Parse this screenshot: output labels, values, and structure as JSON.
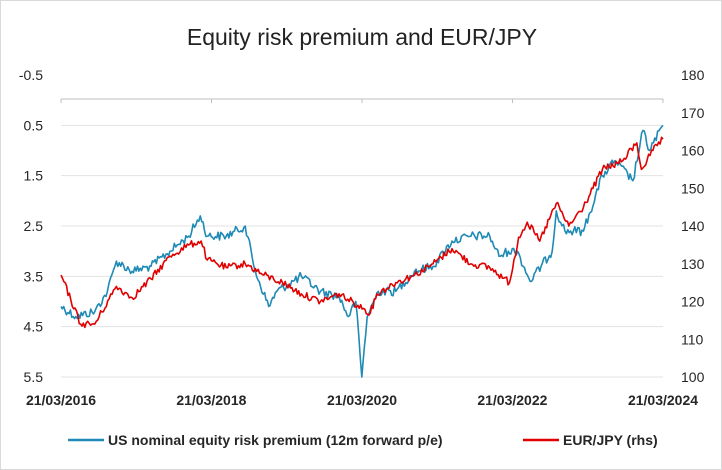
{
  "chart_data": {
    "type": "line",
    "title": "Equity risk premium and EUR/JPY",
    "x_tick_labels": [
      "21/03/2016",
      "21/03/2018",
      "21/03/2020",
      "21/03/2022",
      "21/03/2024"
    ],
    "x_range": [
      "21/03/2016",
      "21/03/2024"
    ],
    "y_left": {
      "reversed": true,
      "range": [
        -0.5,
        5.5
      ],
      "tick_values": [
        -0.5,
        0.5,
        1.5,
        2.5,
        3.5,
        4.5,
        5.5
      ],
      "tick_labels": [
        "-0.5",
        "0.5",
        "1.5",
        "2.5",
        "3.5",
        "4.5",
        "5.5"
      ]
    },
    "y_right": {
      "range": [
        100,
        180
      ],
      "tick_values": [
        100,
        110,
        120,
        130,
        140,
        150,
        160,
        170,
        180
      ],
      "tick_labels": [
        "100",
        "110",
        "120",
        "130",
        "140",
        "150",
        "160",
        "170",
        "180"
      ]
    },
    "grid": "horizontal",
    "legend_position": "bottom",
    "series": [
      {
        "name": "US nominal equity risk premium (12m forward p/e)",
        "axis": "left",
        "color": "#1f8ab5",
        "x": [
          "2016-03-21",
          "2016-06-01",
          "2016-09-01",
          "2016-11-01",
          "2016-12-15",
          "2017-03-01",
          "2017-06-01",
          "2017-09-01",
          "2017-12-01",
          "2018-01-26",
          "2018-03-01",
          "2018-06-01",
          "2018-09-01",
          "2018-10-20",
          "2018-12-24",
          "2019-02-01",
          "2019-06-01",
          "2019-09-01",
          "2019-12-01",
          "2020-01-15",
          "2020-02-20",
          "2020-03-20",
          "2020-04-15",
          "2020-06-08",
          "2020-09-01",
          "2020-12-01",
          "2021-03-01",
          "2021-06-01",
          "2021-09-01",
          "2021-12-01",
          "2022-01-15",
          "2022-03-01",
          "2022-04-15",
          "2022-06-15",
          "2022-09-30",
          "2022-10-20",
          "2022-12-01",
          "2023-03-01",
          "2023-06-01",
          "2023-08-01",
          "2023-10-27",
          "2023-12-15",
          "2024-01-15",
          "2024-03-21"
        ],
        "y": [
          4.1,
          4.3,
          4.2,
          3.8,
          3.2,
          3.4,
          3.3,
          3.0,
          2.7,
          2.3,
          2.7,
          2.7,
          2.5,
          3.4,
          4.1,
          3.8,
          3.5,
          3.8,
          3.9,
          4.3,
          4.0,
          5.5,
          4.3,
          3.8,
          3.8,
          3.4,
          3.3,
          2.8,
          2.7,
          2.7,
          3.1,
          3.0,
          3.0,
          3.6,
          3.0,
          2.2,
          2.6,
          2.6,
          1.5,
          1.2,
          1.6,
          0.6,
          1.0,
          0.5
        ]
      },
      {
        "name": "EUR/JPY (rhs)",
        "axis": "right",
        "color": "#e00000",
        "x": [
          "2016-03-21",
          "2016-06-24",
          "2016-09-01",
          "2016-12-15",
          "2017-03-01",
          "2017-06-01",
          "2017-09-01",
          "2017-12-01",
          "2018-01-30",
          "2018-03-01",
          "2018-06-01",
          "2018-09-01",
          "2018-12-01",
          "2019-03-01",
          "2019-06-01",
          "2019-09-01",
          "2019-12-01",
          "2020-03-01",
          "2020-05-01",
          "2020-06-01",
          "2020-09-01",
          "2020-12-01",
          "2021-03-01",
          "2021-06-01",
          "2021-09-01",
          "2021-12-01",
          "2022-03-07",
          "2022-04-20",
          "2022-06-01",
          "2022-08-01",
          "2022-10-20",
          "2022-12-20",
          "2023-03-01",
          "2023-06-01",
          "2023-09-01",
          "2023-11-15",
          "2023-12-07",
          "2024-02-01",
          "2024-03-21"
        ],
        "y": [
          127,
          114,
          114,
          124,
          121,
          126,
          132,
          135,
          136,
          131,
          129,
          130,
          127,
          125,
          122,
          120,
          122,
          119,
          117,
          122,
          125,
          127,
          130,
          134,
          130,
          129,
          125,
          137,
          141,
          136,
          146,
          140,
          145,
          155,
          157,
          162,
          155,
          160,
          163
        ]
      }
    ]
  }
}
